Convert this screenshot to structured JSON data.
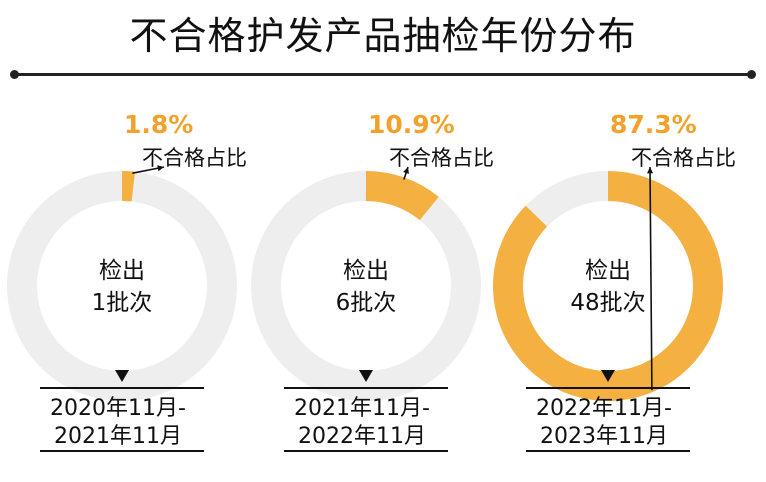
{
  "title": "不合格护发产品抽检年份分布",
  "colors": {
    "accent": "#F4B041",
    "accent_text": "#F2A12A",
    "track": "#EEEEEE",
    "ink": "#111111"
  },
  "chart_data": {
    "type": "pie",
    "variant": "donut",
    "title": "不合格护发产品抽检年份分布",
    "slice_label": "不合格占比",
    "center_prefix": "检出",
    "center_suffix": "批次",
    "charts": [
      {
        "period_line1": "2020年11月-",
        "period_line2": "2021年11月",
        "percent_text": "1.8%",
        "percent": 1.8,
        "batches": 1
      },
      {
        "period_line1": "2021年11月-",
        "period_line2": "2022年11月",
        "percent_text": "10.9%",
        "percent": 10.9,
        "batches": 6
      },
      {
        "period_line1": "2022年11月-",
        "period_line2": "2023年11月",
        "percent_text": "87.3%",
        "percent": 87.3,
        "batches": 48
      }
    ]
  }
}
